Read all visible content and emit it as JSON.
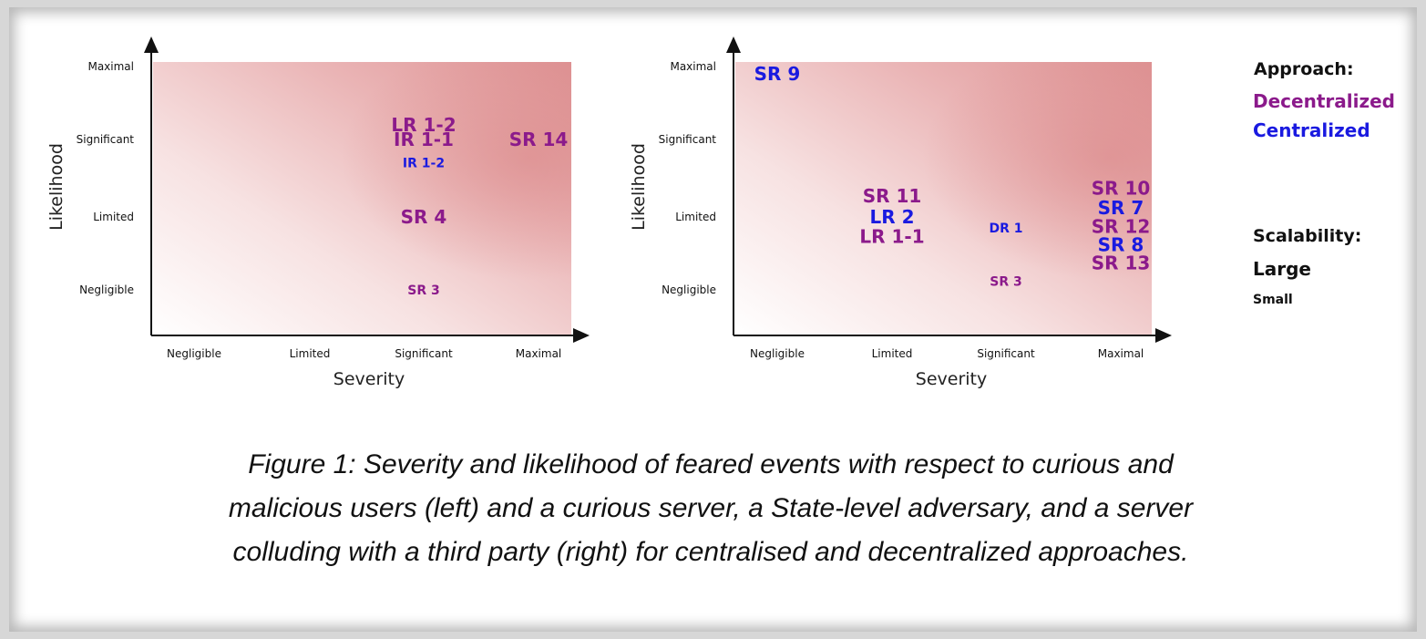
{
  "colors": {
    "decentralized": "#8b1a8b",
    "centralized": "#1a1ae0",
    "heat_light": "#ffffff",
    "heat_dark": "#de9293"
  },
  "legend": {
    "approach_title": "Approach:",
    "approach_items": [
      {
        "label": "Decentralized",
        "color": "#8b1a8b"
      },
      {
        "label": "Centralized",
        "color": "#1a1ae0"
      }
    ],
    "scalability_title": "Scalability:",
    "scalability_items": [
      {
        "label": "Large",
        "size": "large"
      },
      {
        "label": "Small",
        "size": "small"
      }
    ]
  },
  "caption": "Figure 1: Severity and likelihood of feared events with respect to curious and malicious users (left) and a curious server, a State-level adversary, and a server colluding with a third party (right) for centralised and decentralized approaches.",
  "chart_data": [
    {
      "type": "scatter",
      "xlabel": "Severity",
      "ylabel": "Likelihood",
      "x_categories": [
        "Negligible",
        "Limited",
        "Significant",
        "Maximal"
      ],
      "y_categories": [
        "Negligible",
        "Limited",
        "Significant",
        "Maximal"
      ],
      "grid": false,
      "points": [
        {
          "label": "LR 1-2",
          "x": 3.0,
          "y": 3.2,
          "approach": "decentralized",
          "scalability": "large"
        },
        {
          "label": "IR 1-1",
          "x": 3.0,
          "y": 3.0,
          "approach": "decentralized",
          "scalability": "large"
        },
        {
          "label": "IR 1-2",
          "x": 3.0,
          "y": 2.7,
          "approach": "centralized",
          "scalability": "small"
        },
        {
          "label": "SR 14",
          "x": 4.0,
          "y": 3.0,
          "approach": "decentralized",
          "scalability": "large"
        },
        {
          "label": "SR 4",
          "x": 3.0,
          "y": 2.0,
          "approach": "decentralized",
          "scalability": "large"
        },
        {
          "label": "SR 3",
          "x": 3.0,
          "y": 1.0,
          "approach": "decentralized",
          "scalability": "small"
        }
      ]
    },
    {
      "type": "scatter",
      "xlabel": "Severity",
      "ylabel": "Likelihood",
      "x_categories": [
        "Negligible",
        "Limited",
        "Significant",
        "Maximal"
      ],
      "y_categories": [
        "Negligible",
        "Limited",
        "Significant",
        "Maximal"
      ],
      "grid": false,
      "points": [
        {
          "label": "SR 9",
          "x": 1.0,
          "y": 3.9,
          "approach": "centralized",
          "scalability": "large"
        },
        {
          "label": "SR 11",
          "x": 2.0,
          "y": 2.27,
          "approach": "decentralized",
          "scalability": "large"
        },
        {
          "label": "LR 2",
          "x": 2.0,
          "y": 2.0,
          "approach": "centralized",
          "scalability": "large"
        },
        {
          "label": "LR 1-1",
          "x": 2.0,
          "y": 1.73,
          "approach": "decentralized",
          "scalability": "large"
        },
        {
          "label": "DR 1",
          "x": 3.0,
          "y": 1.85,
          "approach": "centralized",
          "scalability": "small"
        },
        {
          "label": "SR 3",
          "x": 3.0,
          "y": 1.12,
          "approach": "decentralized",
          "scalability": "small"
        },
        {
          "label": "SR 10",
          "x": 4.0,
          "y": 2.37,
          "approach": "decentralized",
          "scalability": "large"
        },
        {
          "label": "SR 7",
          "x": 4.0,
          "y": 2.12,
          "approach": "centralized",
          "scalability": "large"
        },
        {
          "label": "SR 12",
          "x": 4.0,
          "y": 1.87,
          "approach": "decentralized",
          "scalability": "large"
        },
        {
          "label": "SR 8",
          "x": 4.0,
          "y": 1.62,
          "approach": "centralized",
          "scalability": "large"
        },
        {
          "label": "SR 13",
          "x": 4.0,
          "y": 1.37,
          "approach": "decentralized",
          "scalability": "large"
        }
      ]
    }
  ]
}
